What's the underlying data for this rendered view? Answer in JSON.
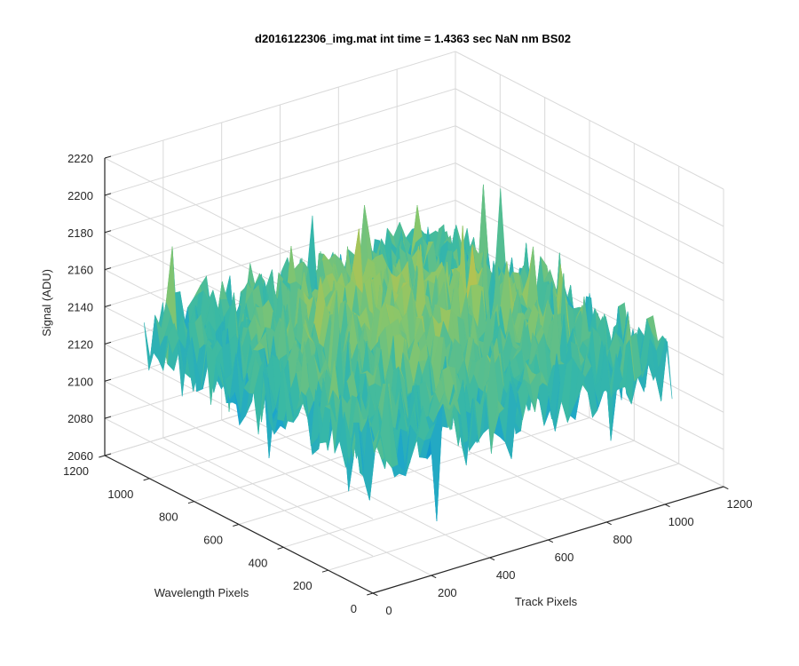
{
  "chart_data": {
    "type": "surface",
    "title": "d2016122306_img.mat int time = 1.4363 sec  NaN nm BS02",
    "xlabel": "Track Pixels",
    "ylabel": "Wavelength Pixels",
    "zlabel": "Signal (ADU)",
    "xlim": [
      0,
      1200
    ],
    "ylim": [
      0,
      1200
    ],
    "zlim": [
      2060,
      2220
    ],
    "xticks": [
      0,
      200,
      400,
      600,
      800,
      1000,
      1200
    ],
    "yticks": [
      0,
      200,
      400,
      600,
      800,
      1000,
      1200
    ],
    "zticks": [
      2060,
      2080,
      2100,
      2120,
      2140,
      2160,
      2180,
      2200,
      2220
    ],
    "xtick_labels": [
      "0",
      "200",
      "400",
      "600",
      "800",
      "1000",
      "1200"
    ],
    "ytick_labels": [
      "0",
      "200",
      "400",
      "600",
      "800",
      "1000",
      "1200"
    ],
    "ztick_labels": [
      "2060",
      "2080",
      "2100",
      "2120",
      "2140",
      "2160",
      "2180",
      "2200",
      "2220"
    ],
    "grid": true,
    "surface_extent": {
      "x": [
        0,
        1024
      ],
      "y": [
        0,
        1024
      ]
    },
    "surface_level_range": [
      2100,
      2195
    ],
    "surface_mean_level": 2140,
    "colormap": [
      "#0072bd",
      "#1aa3cf",
      "#39b9a5",
      "#8ac66a",
      "#c8c244",
      "#f0c02e"
    ]
  }
}
